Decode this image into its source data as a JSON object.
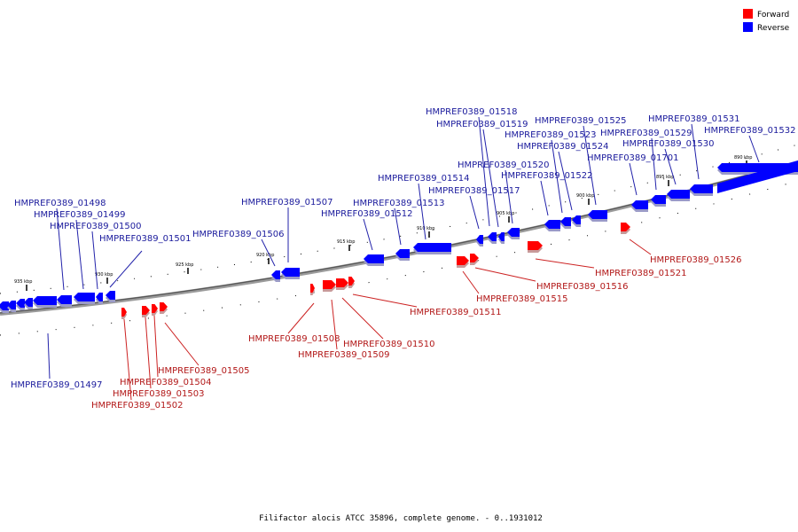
{
  "legend": {
    "forward": "Forward",
    "reverse": "Reverse",
    "forward_color": "#ff0000",
    "reverse_color": "#0000ff"
  },
  "caption": "Filifactor alocis ATCC 35896, complete genome. - 0..1931012",
  "ticks": [
    "935 kbp",
    "930 kbp",
    "925 kbp",
    "920 kbp",
    "915 kbp",
    "910 kbp",
    "905 kbp",
    "900 kbp",
    "895 kbp",
    "890 kbp"
  ],
  "genes_reverse": [
    "HMPREF0389_01497",
    "HMPREF0389_01498",
    "HMPREF0389_01499",
    "HMPREF0389_01500",
    "HMPREF0389_01501",
    "HMPREF0389_01506",
    "HMPREF0389_01507",
    "HMPREF0389_01512",
    "HMPREF0389_01513",
    "HMPREF0389_01514",
    "HMPREF0389_01517",
    "HMPREF0389_01518",
    "HMPREF0389_01519",
    "HMPREF0389_01520",
    "HMPREF0389_01522",
    "HMPREF0389_01523",
    "HMPREF0389_01524",
    "HMPREF0389_01525",
    "HMPREF0389_01701",
    "HMPREF0389_01529",
    "HMPREF0389_01530",
    "HMPREF0389_01531",
    "HMPREF0389_01532"
  ],
  "genes_forward": [
    "HMPREF0389_01502",
    "HMPREF0389_01503",
    "HMPREF0389_01504",
    "HMPREF0389_01505",
    "HMPREF0389_01508",
    "HMPREF0389_01509",
    "HMPREF0389_01510",
    "HMPREF0389_01511",
    "HMPREF0389_01515",
    "HMPREF0389_01516",
    "HMPREF0389_01521",
    "HMPREF0389_01526"
  ]
}
